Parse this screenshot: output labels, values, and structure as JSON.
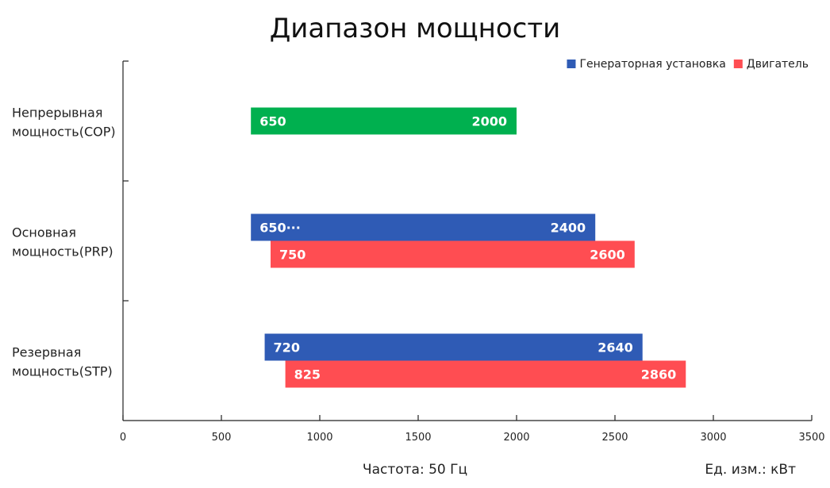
{
  "chart_data": {
    "type": "bar",
    "orientation": "horizontal-range",
    "title": "Диапазон мощности",
    "categories": [
      [
        "Непрерывная",
        "мощность(COP)"
      ],
      [
        "Основная",
        "мощность(PRP)"
      ],
      [
        "Резервная",
        "мощность(STP)"
      ]
    ],
    "legend": {
      "placement": "top-right",
      "items": [
        {
          "name": "Генераторная установка",
          "color": "#2f5bb5"
        },
        {
          "name": "Двигатель",
          "color": "#ff4d52"
        }
      ]
    },
    "bars": [
      {
        "category": 0,
        "series": "cop",
        "start": 650,
        "end": 2000,
        "start_label": "650",
        "end_label": "2000",
        "color": "#00b04f"
      },
      {
        "category": 1,
        "series": "Генераторная установка",
        "start": 650,
        "end": 2400,
        "start_label": "650···",
        "end_label": "2400",
        "color": "#2f5bb5"
      },
      {
        "category": 1,
        "series": "Двигатель",
        "start": 750,
        "end": 2600,
        "start_label": "750",
        "end_label": "2600",
        "color": "#ff4d52"
      },
      {
        "category": 2,
        "series": "Генераторная установка",
        "start": 720,
        "end": 2640,
        "start_label": "720",
        "end_label": "2640",
        "color": "#2f5bb5"
      },
      {
        "category": 2,
        "series": "Двигатель",
        "start": 825,
        "end": 2860,
        "start_label": "825",
        "end_label": "2860",
        "color": "#ff4d52"
      }
    ],
    "x_ticks": [
      0,
      500,
      1000,
      1500,
      2000,
      2500,
      3000,
      3500
    ],
    "xlim": [
      0,
      3500
    ],
    "grid": false
  },
  "footer": {
    "frequency": "Частота: 50 Гц",
    "unit": "Ед. изм.: кВт"
  }
}
